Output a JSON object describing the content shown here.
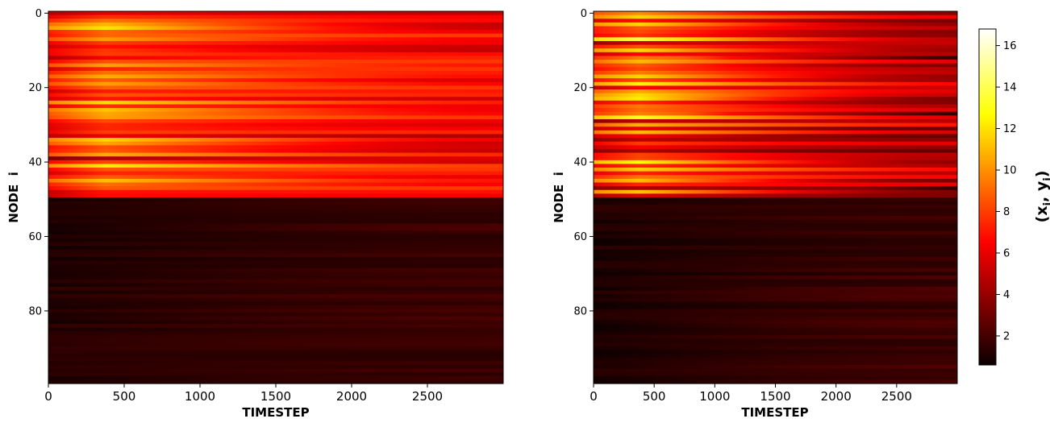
{
  "chart_data": [
    {
      "type": "heatmap",
      "xlabel": "TIMESTEP",
      "ylabel": "NODE  i",
      "xlim": [
        0,
        3000
      ],
      "ylim": [
        99.5,
        -0.5
      ],
      "x_ticks": [
        "0",
        "500",
        "1000",
        "1500",
        "2000",
        "2500"
      ],
      "y_ticks": [
        "0",
        "20",
        "40",
        "60",
        "80"
      ],
      "rows": 100,
      "columns": 3000,
      "colormap": "hot",
      "boundary_node": 49.5,
      "regions": [
        {
          "nodes": [
            0,
            49
          ],
          "value_start_range": [
            6,
            14
          ],
          "value_end_range": [
            5,
            8
          ]
        },
        {
          "nodes": [
            50,
            99
          ],
          "value_start_range": [
            0.7,
            1.6
          ],
          "value_end_range": [
            1.3,
            2.2
          ]
        }
      ],
      "y_tick_values": [
        0,
        20,
        40,
        60,
        80
      ],
      "x_tick_values": [
        0,
        500,
        1000,
        1500,
        2000,
        2500
      ]
    },
    {
      "type": "heatmap",
      "xlabel": "TIMESTEP",
      "ylabel": "NODE  i",
      "xlim": [
        0,
        3000
      ],
      "ylim": [
        99.5,
        -0.5
      ],
      "x_ticks": [
        "0",
        "500",
        "1000",
        "1500",
        "2000",
        "2500"
      ],
      "y_ticks": [
        "0",
        "20",
        "40",
        "60",
        "80"
      ],
      "rows": 100,
      "columns": 3000,
      "colormap": "hot",
      "boundary_node": 49.5,
      "dark_streak_nodes": [
        12,
        27,
        47
      ],
      "regions": [
        {
          "nodes": [
            0,
            49
          ],
          "value_start_range": [
            6,
            16
          ],
          "value_end_range": [
            3,
            7
          ]
        },
        {
          "nodes": [
            50,
            99
          ],
          "value_start_range": [
            0.6,
            1.5
          ],
          "value_end_range": [
            1.3,
            2.3
          ]
        }
      ],
      "y_tick_values": [
        0,
        20,
        40,
        60,
        80
      ],
      "x_tick_values": [
        0,
        500,
        1000,
        1500,
        2000,
        2500
      ]
    }
  ],
  "colorbar": {
    "title_main": "(x",
    "title_sub1": "i",
    "title_mid": ", y",
    "title_sub2": "i",
    "title_end": ")",
    "range": [
      0.6,
      16.8
    ],
    "ticks": [
      "2",
      "4",
      "6",
      "8",
      "10",
      "12",
      "14",
      "16"
    ],
    "tick_values": [
      2,
      4,
      6,
      8,
      10,
      12,
      14,
      16
    ],
    "colormap": "hot"
  }
}
